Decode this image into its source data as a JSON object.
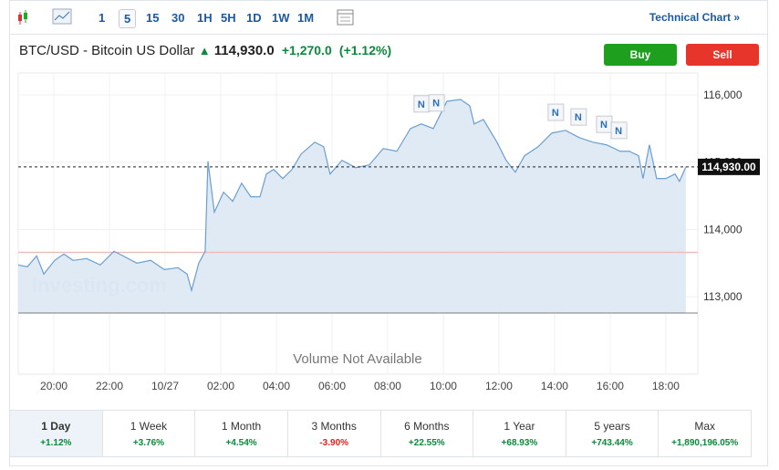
{
  "toolbar": {
    "intervals": [
      "1",
      "5",
      "15",
      "30",
      "1H",
      "5H",
      "1D",
      "1W",
      "1M"
    ],
    "selected": "5",
    "link": "Technical Chart »"
  },
  "header": {
    "symbol": "BTC/USD - Bitcoin US Dollar",
    "price": "114,930.0",
    "change": "+1,270.0",
    "change_pct": "(+1.12%)",
    "buy": "Buy",
    "sell": "Sell"
  },
  "chart": {
    "type": "line",
    "color": "#6a9fd0",
    "x": [
      -1.28,
      -0.95,
      -0.62,
      -0.36,
      0.03,
      0.36,
      0.69,
      1.18,
      1.67,
      2.16,
      2.49,
      2.98,
      3.48,
      3.97,
      4.46,
      4.79,
      4.95,
      5.21,
      5.44,
      5.54,
      5.77,
      6.1,
      6.43,
      6.75,
      7.08,
      7.41,
      7.64,
      7.9,
      8.23,
      8.56,
      8.89,
      9.38,
      9.7,
      9.93,
      10.36,
      10.85,
      11.34,
      11.84,
      12.33,
      12.82,
      13.21,
      13.64,
      14.13,
      14.62,
      14.95,
      15.11,
      15.44,
      15.93,
      16.26,
      16.59,
      16.92,
      17.41,
      17.9,
      18.39,
      18.89,
      19.38,
      19.87,
      20.36,
      20.69,
      21.02,
      21.18,
      21.41,
      21.67,
      22.0,
      22.33,
      22.49,
      22.72
    ],
    "values": [
      113473,
      113446,
      113608,
      113338,
      113541,
      113635,
      113541,
      113568,
      113473,
      113676,
      113608,
      113500,
      113541,
      113405,
      113432,
      113338,
      113095,
      113500,
      113676,
      115014,
      114257,
      114554,
      114419,
      114689,
      114486,
      114486,
      114824,
      114892,
      114757,
      114892,
      115122,
      115297,
      115230,
      114824,
      115027,
      114919,
      114959,
      115203,
      115162,
      115500,
      115568,
      115500,
      115905,
      115932,
      115838,
      115568,
      115635,
      115297,
      115027,
      114851,
      115095,
      115230,
      115432,
      115473,
      115365,
      115297,
      115257,
      115162,
      115162,
      115095,
      114757,
      115257,
      114757,
      114757,
      114824,
      114716,
      114930
    ],
    "xlim": [
      -1.28,
      23.15
    ],
    "ylim": [
      111850,
      116325
    ],
    "xticks": [
      {
        "value": 0,
        "label": "20:00"
      },
      {
        "value": 2,
        "label": "22:00"
      },
      {
        "value": 4,
        "label": "10/27"
      },
      {
        "value": 6,
        "label": "02:00"
      },
      {
        "value": 8,
        "label": "04:00"
      },
      {
        "value": 10,
        "label": "06:00"
      },
      {
        "value": 12,
        "label": "08:00"
      },
      {
        "value": 14,
        "label": "10:00"
      },
      {
        "value": 16,
        "label": "12:00"
      },
      {
        "value": 18,
        "label": "14:00"
      },
      {
        "value": 20,
        "label": "16:00"
      },
      {
        "value": 22,
        "label": "18:00"
      }
    ],
    "yticks": [
      {
        "value": 113000,
        "label": "113,000"
      },
      {
        "value": 114000,
        "label": "114,000"
      },
      {
        "value": 115000,
        "label": "115,000"
      },
      {
        "value": 116000,
        "label": "116,000"
      }
    ],
    "last_price": {
      "value": 114930,
      "label": "114,930.00"
    },
    "reference_line": 113660,
    "news": [
      {
        "label": "N",
        "x": 13.21
      },
      {
        "label": "N",
        "x": 13.74
      },
      {
        "label": "N",
        "x": 18.03
      },
      {
        "label": "N",
        "x": 18.85
      },
      {
        "label": "N",
        "x": 19.77
      },
      {
        "label": "N",
        "x": 20.3
      }
    ],
    "watermark": "Investing.com",
    "volume_note": "Volume Not Available"
  },
  "performance": [
    {
      "period": "1 Day",
      "change": "+1.12%"
    },
    {
      "period": "1 Week",
      "change": "+3.76%"
    },
    {
      "period": "1 Month",
      "change": "+4.54%"
    },
    {
      "period": "3 Months",
      "change": "-3.90%"
    },
    {
      "period": "6 Months",
      "change": "+22.55%"
    },
    {
      "period": "1 Year",
      "change": "+68.93%"
    },
    {
      "period": "5 years",
      "change": "+743.44%"
    },
    {
      "period": "Max",
      "change": "+1,890,196.05%"
    }
  ]
}
